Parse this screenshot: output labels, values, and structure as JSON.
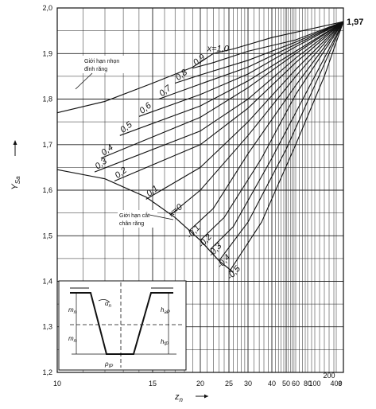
{
  "chart_data": {
    "type": "line",
    "title": "",
    "xlabel": "z",
    "xlabel_sub": "n",
    "ylabel": "Y",
    "ylabel_sub": "Sa",
    "ylim": [
      1.2,
      2.0
    ],
    "x_ticks": [
      {
        "label": "10",
        "z": 10
      },
      {
        "label": "15",
        "z": 15
      },
      {
        "label": "20",
        "z": 20
      },
      {
        "label": "25",
        "z": 25
      },
      {
        "label": "30",
        "z": 30
      },
      {
        "label": "40",
        "z": 40
      },
      {
        "label": "50",
        "z": 50
      },
      {
        "label": "60",
        "z": 60
      },
      {
        "label": "80",
        "z": 80
      },
      {
        "label": "100",
        "z": 100
      },
      {
        "label": "200",
        "z": 200
      },
      {
        "label": "400",
        "z": 400
      },
      {
        "label": "∞",
        "z": "inf"
      }
    ],
    "y_ticks": [
      "1,2",
      "1,3",
      "1,4",
      "1,5",
      "1,6",
      "1,7",
      "1,8",
      "1,9",
      "2,0"
    ],
    "converge": {
      "label": "1,97",
      "y": 1.97
    },
    "series": [
      {
        "name": "x=1,0",
        "points": [
          [
            22,
            1.9
          ],
          [
            26,
            1.91
          ],
          [
            40,
            1.935
          ],
          [
            "inf",
            1.97
          ]
        ]
      },
      {
        "name": "0,9",
        "points": [
          [
            19,
            1.868
          ],
          [
            22,
            1.88
          ],
          [
            30,
            1.905
          ],
          [
            60,
            1.93
          ],
          [
            "inf",
            1.97
          ]
        ]
      },
      {
        "name": "0,8",
        "points": [
          [
            17,
            1.835
          ],
          [
            20,
            1.853
          ],
          [
            30,
            1.885
          ],
          [
            60,
            1.925
          ],
          [
            "inf",
            1.97
          ]
        ]
      },
      {
        "name": "0,7",
        "points": [
          [
            15.5,
            1.8
          ],
          [
            20,
            1.833
          ],
          [
            30,
            1.87
          ],
          [
            60,
            1.92
          ],
          [
            "inf",
            1.97
          ]
        ]
      },
      {
        "name": "0,6",
        "points": [
          [
            14,
            1.762
          ],
          [
            20,
            1.81
          ],
          [
            30,
            1.855
          ],
          [
            60,
            1.915
          ],
          [
            "inf",
            1.97
          ]
        ]
      },
      {
        "name": "0,5",
        "points": [
          [
            12.8,
            1.72
          ],
          [
            20,
            1.785
          ],
          [
            30,
            1.84
          ],
          [
            60,
            1.905
          ],
          [
            "inf",
            1.97
          ]
        ]
      },
      {
        "name": "0,4",
        "points": [
          [
            11.8,
            1.67
          ],
          [
            20,
            1.76
          ],
          [
            30,
            1.825
          ],
          [
            60,
            1.9
          ],
          [
            "inf",
            1.97
          ]
        ]
      },
      {
        "name": "0,3",
        "points": [
          [
            11.5,
            1.64
          ],
          [
            20,
            1.73
          ],
          [
            30,
            1.8
          ],
          [
            60,
            1.89
          ],
          [
            "inf",
            1.97
          ]
        ]
      },
      {
        "name": "0,2",
        "points": [
          [
            12.5,
            1.62
          ],
          [
            20,
            1.7
          ],
          [
            30,
            1.78
          ],
          [
            60,
            1.88
          ],
          [
            "inf",
            1.97
          ]
        ]
      },
      {
        "name": "0,1",
        "points": [
          [
            14.5,
            1.58
          ],
          [
            20,
            1.65
          ],
          [
            30,
            1.75
          ],
          [
            60,
            1.865
          ],
          [
            "inf",
            1.97
          ]
        ]
      },
      {
        "name": "x=0",
        "points": [
          [
            16.5,
            1.545
          ],
          [
            20,
            1.6
          ],
          [
            30,
            1.72
          ],
          [
            60,
            1.85
          ],
          [
            "inf",
            1.97
          ]
        ]
      },
      {
        "name": "-0,1",
        "points": [
          [
            18.5,
            1.51
          ],
          [
            22,
            1.56
          ],
          [
            30,
            1.68
          ],
          [
            60,
            1.83
          ],
          [
            "inf",
            1.97
          ]
        ]
      },
      {
        "name": "-0,2",
        "points": [
          [
            20,
            1.49
          ],
          [
            24,
            1.54
          ],
          [
            35,
            1.67
          ],
          [
            60,
            1.81
          ],
          [
            "inf",
            1.97
          ]
        ]
      },
      {
        "name": "-0,3",
        "points": [
          [
            21.5,
            1.47
          ],
          [
            26,
            1.52
          ],
          [
            40,
            1.67
          ],
          [
            80,
            1.82
          ],
          [
            "inf",
            1.97
          ]
        ]
      },
      {
        "name": "-0,4",
        "points": [
          [
            23,
            1.445
          ],
          [
            30,
            1.53
          ],
          [
            50,
            1.69
          ],
          [
            100,
            1.83
          ],
          [
            "inf",
            1.97
          ]
        ]
      },
      {
        "name": "-0,5",
        "points": [
          [
            25,
            1.42
          ],
          [
            35,
            1.53
          ],
          [
            60,
            1.7
          ],
          [
            150,
            1.85
          ],
          [
            "inf",
            1.97
          ]
        ]
      }
    ],
    "annotations": {
      "upper_label_line1": "Giới hạn nhọn",
      "upper_label_line2": "đỉnh răng",
      "lower_label_line1": "Giới hạn cắt",
      "lower_label_line2": "chân răng"
    },
    "inset": {
      "labels": [
        "α",
        "m",
        "m",
        "h",
        "h",
        "ρ"
      ],
      "subs": [
        "n",
        "n",
        "n",
        "aP",
        "fP",
        "fP"
      ]
    }
  }
}
